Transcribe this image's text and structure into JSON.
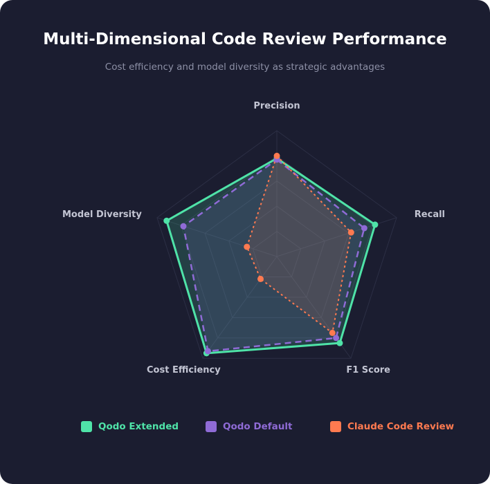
{
  "title": "Multi-Dimensional Code Review Performance",
  "subtitle": "Cost efficiency and model diversity as strategic advantages",
  "chart_data": {
    "type": "radar",
    "axes": [
      "Precision",
      "Recall",
      "F1 Score",
      "Cost Efficiency",
      "Model Diversity"
    ],
    "range": [
      0,
      100
    ],
    "grid_levels": 5,
    "grid": true,
    "legend_position": "bottom",
    "series": [
      {
        "name": "Qodo Extended",
        "values": [
          78,
          82,
          85,
          95,
          92
        ],
        "color": "#4fe3a8",
        "line": "solid"
      },
      {
        "name": "Qodo Default",
        "values": [
          77,
          73,
          80,
          93,
          78
        ],
        "color": "#8f6bd6",
        "line": "dashed"
      },
      {
        "name": "Claude Code Review",
        "values": [
          80,
          62,
          75,
          22,
          25
        ],
        "color": "#ff7a50",
        "line": "dotted"
      }
    ]
  }
}
